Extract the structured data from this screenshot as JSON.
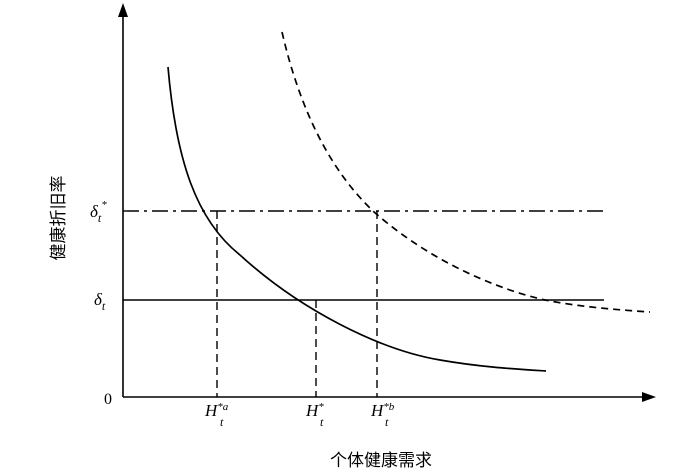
{
  "labels": {
    "y_axis": "健康折旧率",
    "x_axis": "个体健康需求",
    "origin": "0"
  },
  "y_ticks": {
    "delta_star": {
      "base": "δ",
      "sub": "t",
      "sup": "*"
    },
    "delta": {
      "base": "δ",
      "sub": "t"
    }
  },
  "x_ticks": {
    "h_star_a": {
      "base": "H",
      "sub": "t",
      "sup": "*a"
    },
    "h_star": {
      "base": "H",
      "sub": "t",
      "sup": "*"
    },
    "h_star_b": {
      "base": "H",
      "sub": "t",
      "sup": "*b"
    }
  }
}
